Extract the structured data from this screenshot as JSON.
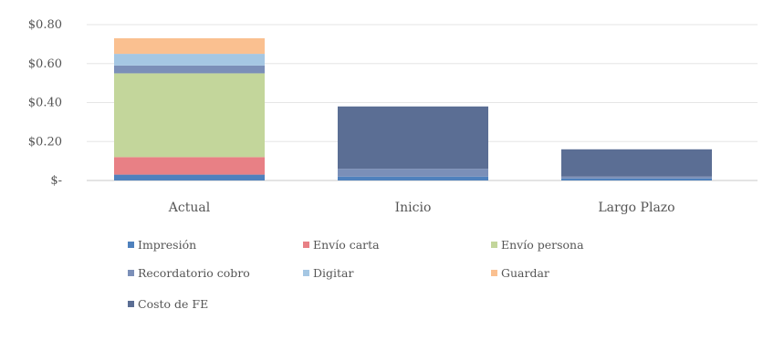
{
  "chart_data": {
    "type": "bar",
    "stacked": true,
    "title": "",
    "xlabel": "",
    "ylabel": "",
    "categories": [
      "Actual",
      "Inicio",
      "Largo Plazo"
    ],
    "y_ticks": [
      "$-",
      "$0.20",
      "$0.40",
      "$0.60",
      "$0.80"
    ],
    "y_tick_values": [
      0,
      0.2,
      0.4,
      0.6,
      0.8
    ],
    "ylim": [
      0,
      0.8
    ],
    "grid": true,
    "legend_position": "bottom",
    "series": [
      {
        "name": "Impresión",
        "color": "#4f81bd",
        "values": [
          0.03,
          0.02,
          0.01
        ]
      },
      {
        "name": "Envío carta",
        "color": "#e88085",
        "values": [
          0.09,
          0.0,
          0.0
        ]
      },
      {
        "name": "Envío persona",
        "color": "#c3d69b",
        "values": [
          0.43,
          0.0,
          0.0
        ]
      },
      {
        "name": "Recordatorio cobro",
        "color": "#7b8fb8",
        "values": [
          0.04,
          0.04,
          0.01
        ]
      },
      {
        "name": "Digitar",
        "color": "#a5c7e3",
        "values": [
          0.06,
          0.0,
          0.0
        ]
      },
      {
        "name": "Guardar",
        "color": "#fac090",
        "values": [
          0.08,
          0.0,
          0.0
        ]
      },
      {
        "name": "Costo de FE",
        "color": "#5b6e94",
        "values": [
          0.0,
          0.32,
          0.14
        ]
      }
    ]
  }
}
